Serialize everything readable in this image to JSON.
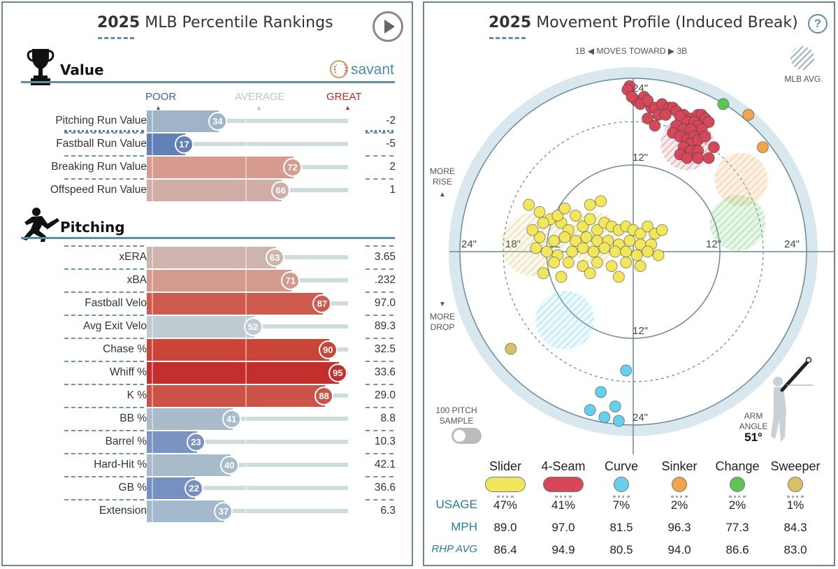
{
  "percentile": {
    "title_year": "2025",
    "title_text": "MLB Percentile Rankings",
    "value_heading": "Value",
    "pitching_heading": "Pitching",
    "brand": "savant",
    "scale": {
      "poor": "POOR",
      "average": "AVERAGE",
      "great": "GREAT"
    },
    "colors": {
      "poor": "#3c64a8",
      "average": "#c7d3d7",
      "great": "#c62828"
    },
    "value_rows": [
      {
        "label": "Pitching Run Value",
        "percentile": 34,
        "value": "-2",
        "color": "#9fb5c7"
      },
      {
        "label": "Fastball Run Value",
        "percentile": 17,
        "value": "-5",
        "color": "#627fb8"
      },
      {
        "label": "Breaking Run Value",
        "percentile": 72,
        "value": "2",
        "color": "#d79a8f"
      },
      {
        "label": "Offspeed Run Value",
        "percentile": 66,
        "value": "1",
        "color": "#cfaea8"
      }
    ],
    "pitching_rows": [
      {
        "label": "xERA",
        "percentile": 63,
        "value": "3.65",
        "color": "#cdb4ad"
      },
      {
        "label": "xBA",
        "percentile": 71,
        "value": ".232",
        "color": "#d59a8e"
      },
      {
        "label": "Fastball Velo",
        "percentile": 87,
        "value": "97.0",
        "color": "#cf5b4e"
      },
      {
        "label": "Avg Exit Velo",
        "percentile": 52,
        "value": "89.3",
        "color": "#bfcbd0"
      },
      {
        "label": "Chase %",
        "percentile": 90,
        "value": "32.5",
        "color": "#c94538"
      },
      {
        "label": "Whiff %",
        "percentile": 95,
        "value": "33.6",
        "color": "#c42f2d"
      },
      {
        "label": "K %",
        "percentile": 88,
        "value": "29.0",
        "color": "#cc5347"
      },
      {
        "label": "BB %",
        "percentile": 41,
        "value": "8.8",
        "color": "#a9bccb"
      },
      {
        "label": "Barrel %",
        "percentile": 23,
        "value": "10.3",
        "color": "#7a93c2"
      },
      {
        "label": "Hard-Hit %",
        "percentile": 40,
        "value": "42.1",
        "color": "#a8bbcb"
      },
      {
        "label": "GB %",
        "percentile": 22,
        "value": "36.6",
        "color": "#7690c1"
      },
      {
        "label": "Extension",
        "percentile": 37,
        "value": "6.3",
        "color": "#a4b9cb"
      }
    ]
  },
  "movement": {
    "title_year": "2025",
    "title_text": "Movement Profile (Induced Break)",
    "help": "?",
    "moves_toward": {
      "left": "1B",
      "middle": "MOVES TOWARD",
      "right": "3B"
    },
    "mlb_avg_label": "MLB AVG.",
    "more_rise": [
      "MORE",
      "RISE"
    ],
    "more_drop": [
      "MORE",
      "DROP"
    ],
    "sample_label": [
      "100 PITCH",
      "SAMPLE"
    ],
    "arm_angle_label": [
      "ARM",
      "ANGLE"
    ],
    "arm_angle_value": "51°",
    "ring_labels": {
      "top24": "24\"",
      "top12": "12\"",
      "bottom12": "12\"",
      "bottom24": "24\"",
      "left24": "24\"",
      "left18": "18\"",
      "left12": "12\"",
      "right12": "12\"",
      "right24": "24\""
    },
    "table_rows": {
      "usage": "USAGE",
      "mph": "MPH",
      "rhp_avg": "RHP AVG"
    },
    "pitches": [
      {
        "name": "Slider",
        "color": "#f2e75c",
        "usage": "47%",
        "mph": "89.0",
        "rhp_avg": "86.4"
      },
      {
        "name": "4-Seam",
        "color": "#d5485a",
        "usage": "41%",
        "mph": "97.0",
        "rhp_avg": "94.9"
      },
      {
        "name": "Curve",
        "color": "#66d0ec",
        "usage": "7%",
        "mph": "81.5",
        "rhp_avg": "80.5"
      },
      {
        "name": "Sinker",
        "color": "#f0a44c",
        "usage": "2%",
        "mph": "96.3",
        "rhp_avg": "94.0"
      },
      {
        "name": "Change",
        "color": "#5fc457",
        "usage": "2%",
        "mph": "77.3",
        "rhp_avg": "86.6"
      },
      {
        "name": "Sweeper",
        "color": "#d9bf66",
        "usage": "1%",
        "mph": "84.3",
        "rhp_avg": "83.0"
      }
    ]
  },
  "chart_data": [
    {
      "type": "bar",
      "title": "2025 MLB Percentile Rankings",
      "categories": [
        "Pitching Run Value",
        "Fastball Run Value",
        "Breaking Run Value",
        "Offspeed Run Value",
        "xERA",
        "xBA",
        "Fastball Velo",
        "Avg Exit Velo",
        "Chase %",
        "Whiff %",
        "K %",
        "BB %",
        "Barrel %",
        "Hard-Hit %",
        "GB %",
        "Extension"
      ],
      "series": [
        {
          "values": [
            34,
            17,
            72,
            66,
            63,
            71,
            87,
            52,
            90,
            95,
            88,
            41,
            23,
            40,
            22,
            37
          ]
        }
      ],
      "stat_values": [
        "-2",
        "-5",
        "2",
        "1",
        "3.65",
        ".232",
        "97.0",
        "89.3",
        "32.5",
        "33.6",
        "29.0",
        "8.8",
        "10.3",
        "42.1",
        "36.6",
        "6.3"
      ],
      "xlim": [
        0,
        100
      ]
    },
    {
      "type": "scatter",
      "title": "2025 Movement Profile (Induced Break)",
      "xlim": [
        -30,
        30
      ],
      "ylim": [
        -30,
        30
      ],
      "series": [
        {
          "name": "4-Seam",
          "points": [
            [
              -0.5,
              23
            ],
            [
              -0.8,
              22.5
            ],
            [
              0.4,
              21
            ],
            [
              1.5,
              21.5
            ],
            [
              2.5,
              20
            ],
            [
              3,
              20
            ],
            [
              4,
              20.5
            ],
            [
              5,
              20
            ],
            [
              5.5,
              20
            ],
            [
              6,
              19.5
            ],
            [
              7,
              19
            ],
            [
              8,
              18.5
            ],
            [
              9,
              19
            ],
            [
              9.5,
              19
            ],
            [
              10,
              18.5
            ],
            [
              10.5,
              18
            ],
            [
              2,
              18.5
            ],
            [
              3.5,
              19
            ],
            [
              4.5,
              19
            ],
            [
              6.5,
              18.8
            ],
            [
              7.5,
              18
            ],
            [
              8.5,
              18
            ],
            [
              9,
              17.5
            ],
            [
              6,
              17.5
            ],
            [
              7,
              17
            ],
            [
              8,
              17
            ],
            [
              9.5,
              17
            ],
            [
              5.5,
              16.5
            ],
            [
              6.5,
              16
            ],
            [
              7.5,
              15.5
            ],
            [
              8.5,
              16
            ],
            [
              8,
              15
            ],
            [
              9,
              15.5
            ],
            [
              10,
              16
            ],
            [
              7,
              14.5
            ],
            [
              8,
              14
            ],
            [
              9,
              14
            ],
            [
              6.5,
              13.5
            ],
            [
              7.5,
              13
            ],
            [
              9,
              13
            ],
            [
              10.5,
              13
            ],
            [
              11.2,
              14.5
            ],
            [
              -0.2,
              21.5
            ],
            [
              3,
              17.5
            ],
            [
              1,
              20.5
            ],
            [
              2,
              21
            ]
          ]
        },
        {
          "name": "Slider",
          "points": [
            [
              -14.5,
              6.5
            ],
            [
              -13,
              5.5
            ],
            [
              -11.5,
              4.5
            ],
            [
              -10,
              4
            ],
            [
              -9,
              3
            ],
            [
              -8,
              5
            ],
            [
              -7,
              3.5
            ],
            [
              -6,
              4.5
            ],
            [
              -5,
              3
            ],
            [
              -4,
              4
            ],
            [
              -3,
              3.5
            ],
            [
              -2,
              3
            ],
            [
              -1,
              3.5
            ],
            [
              0,
              3
            ],
            [
              1,
              2.5
            ],
            [
              2,
              3.5
            ],
            [
              3,
              2.5
            ],
            [
              4,
              3
            ],
            [
              -13,
              2
            ],
            [
              -11,
              1.5
            ],
            [
              -9.5,
              2
            ],
            [
              -8,
              1.5
            ],
            [
              -6.5,
              2
            ],
            [
              -5,
              1.5
            ],
            [
              -3.5,
              1.5
            ],
            [
              -2,
              1
            ],
            [
              -0.5,
              1.5
            ],
            [
              1,
              1
            ],
            [
              2.5,
              1
            ],
            [
              -12,
              0
            ],
            [
              -10.5,
              -0.5
            ],
            [
              -8.5,
              0
            ],
            [
              -7,
              0.5
            ],
            [
              -5.5,
              0
            ],
            [
              -4,
              0.5
            ],
            [
              -2.5,
              0
            ],
            [
              -1,
              0
            ],
            [
              0.5,
              -0.5
            ],
            [
              2,
              0
            ],
            [
              3.5,
              -0.5
            ],
            [
              -11,
              -1.5
            ],
            [
              -9,
              -1.5
            ],
            [
              -7,
              -2
            ],
            [
              -5,
              -1.5
            ],
            [
              -3,
              -2
            ],
            [
              -1,
              -1.5
            ],
            [
              1,
              -2
            ],
            [
              -12.5,
              -3
            ],
            [
              -10,
              -3.5
            ],
            [
              -6,
              -3
            ],
            [
              -2,
              -3.5
            ],
            [
              -14,
              3
            ],
            [
              -13.5,
              0.5
            ],
            [
              -12.5,
              4
            ],
            [
              -10.5,
              5
            ],
            [
              -6,
              6.5
            ],
            [
              -4.5,
              7
            ],
            [
              -9.5,
              6
            ]
          ]
        },
        {
          "name": "Curve",
          "points": [
            [
              -6,
              -22
            ],
            [
              -4,
              -23
            ],
            [
              -2,
              -23.5
            ],
            [
              -2.5,
              -21.5
            ],
            [
              -4.5,
              -19.5
            ],
            [
              -1,
              -16.5
            ]
          ]
        },
        {
          "name": "Sinker",
          "points": [
            [
              16,
              19
            ],
            [
              18,
              14.5
            ]
          ]
        },
        {
          "name": "Change",
          "points": [
            [
              12.5,
              20.5
            ]
          ]
        },
        {
          "name": "Sweeper",
          "points": [
            [
              -17,
              -13.5
            ]
          ]
        }
      ]
    }
  ]
}
